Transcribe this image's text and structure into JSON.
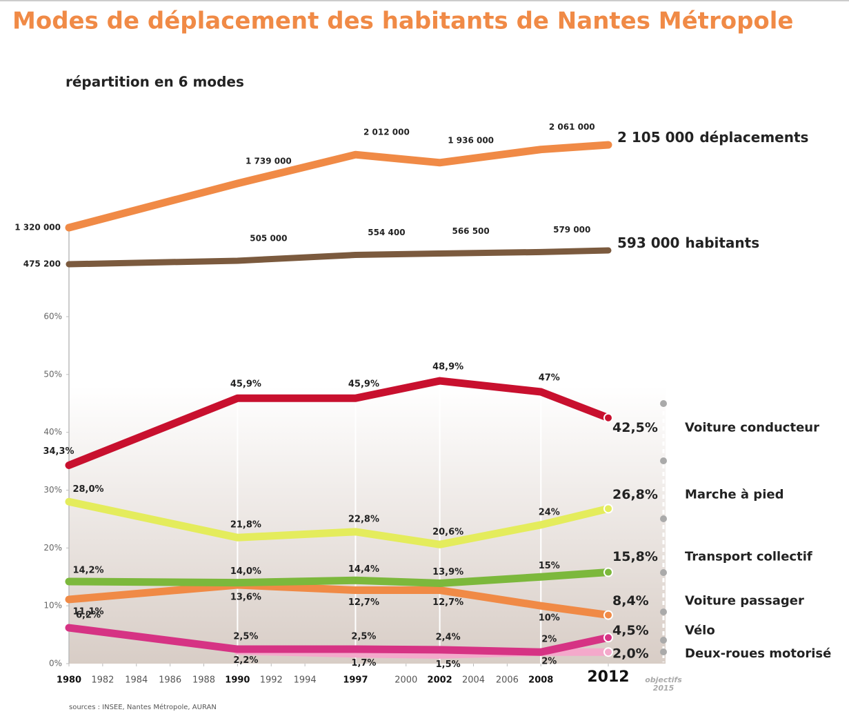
{
  "title": "Modes de déplacement des habitants de Nantes Métropole",
  "subtitle": "répartition en 6 modes",
  "source": "sources : INSEE, Nantes Métropole, AURAN",
  "chart_data": [
    {
      "type": "line",
      "name": "déplacements",
      "color": "#f08a46",
      "x": [
        1980,
        1990,
        1997,
        2002,
        2008,
        2012
      ],
      "values": [
        1320000,
        1739000,
        2012000,
        1936000,
        2061000,
        2105000
      ],
      "value_labels": [
        "1 320 000",
        "1 739 000",
        "2 012 000",
        "1 936 000",
        "2 061 000",
        "2 105 000"
      ],
      "xlim": [
        1980,
        2012
      ],
      "ylim": [
        1250000,
        2250000
      ]
    },
    {
      "type": "line",
      "name": "habitants",
      "color": "#7b5a3e",
      "x": [
        1980,
        1990,
        1997,
        2002,
        2008,
        2012
      ],
      "values": [
        475200,
        505000,
        554400,
        566500,
        579000,
        593000
      ],
      "value_labels": [
        "475 200",
        "505 000",
        "554 400",
        "566 500",
        "579 000",
        "593 000"
      ],
      "xlim": [
        1980,
        2012
      ],
      "ylim": [
        400000,
        700000
      ]
    },
    {
      "type": "line",
      "xlim": [
        1980,
        2012
      ],
      "ylim": [
        0,
        60
      ],
      "yticks": [
        {
          "value": 0,
          "label": "0%"
        },
        {
          "value": 10,
          "label": "10%"
        },
        {
          "value": 20,
          "label": "20%"
        },
        {
          "value": 30,
          "label": "30%"
        },
        {
          "value": 40,
          "label": "40%"
        },
        {
          "value": 50,
          "label": "50%"
        },
        {
          "value": 60,
          "label": "60%"
        }
      ],
      "xticks": [
        1980,
        1982,
        1984,
        1986,
        1988,
        1990,
        1992,
        1994,
        1997,
        2000,
        2002,
        2004,
        2006,
        2008,
        2012
      ],
      "annotation": [
        "objectifs",
        "2015"
      ],
      "x": [
        1980,
        1990,
        1997,
        2002,
        2008,
        2012
      ],
      "series": [
        {
          "name": "Voiture conducteur",
          "color": "#c8102e",
          "values": [
            34.3,
            45.9,
            45.9,
            48.9,
            47,
            42.5
          ],
          "value_labels": [
            "34,3%",
            "45,9%",
            "45,9%",
            "48,9%",
            "47%",
            "42,5%"
          ]
        },
        {
          "name": "Marche à pied",
          "color": "#e4ec5c",
          "values": [
            28.0,
            21.8,
            22.8,
            20.6,
            24,
            26.8
          ],
          "value_labels": [
            "28,0%",
            "21,8%",
            "22,8%",
            "20,6%",
            "24%",
            "26,8%"
          ]
        },
        {
          "name": "Transport collectif",
          "color": "#7cb83c",
          "values": [
            14.2,
            14.0,
            14.4,
            13.9,
            15,
            15.8
          ],
          "value_labels": [
            "14,2%",
            "14,0%",
            "14,4%",
            "13,9%",
            "15%",
            "15,8%"
          ]
        },
        {
          "name": "Voiture passager",
          "color": "#f08a46",
          "values": [
            11.1,
            13.6,
            12.7,
            12.7,
            10,
            8.4
          ],
          "value_labels": [
            "11,1%",
            "13,6%",
            "12,7%",
            "12,7%",
            "10%",
            "8,4%"
          ]
        },
        {
          "name": "Vélo",
          "color": "#d63384",
          "values": [
            6.2,
            2.5,
            2.5,
            2.4,
            2,
            4.5
          ],
          "value_labels": [
            "6,2%",
            "2,5%",
            "2,5%",
            "2,4%",
            "2%",
            "4,5%"
          ]
        },
        {
          "name": "Deux-roues motorisé",
          "color": "#f4a9cb",
          "values": [
            null,
            2.2,
            1.7,
            1.5,
            2,
            2.0
          ],
          "value_labels": [
            null,
            "2,2%",
            "1,7%",
            "1,5%",
            "2%",
            "2,0%"
          ]
        }
      ]
    }
  ]
}
